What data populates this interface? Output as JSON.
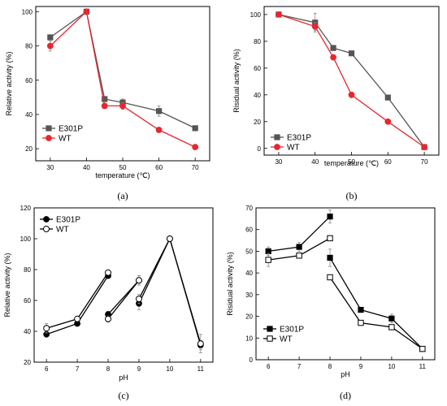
{
  "chart_data": [
    {
      "type": "line",
      "panel_label": "(a)",
      "xlabel": "temperature (℃)",
      "ylabel": "Relative activity (%)",
      "x": [
        30,
        40,
        45,
        50,
        60,
        70
      ],
      "x_ticks": [
        30,
        40,
        50,
        60,
        70
      ],
      "y_ticks": [
        20,
        40,
        60,
        80,
        100
      ],
      "xlim": [
        26,
        74
      ],
      "ylim": [
        13,
        103
      ],
      "legend_position": "bottom-left",
      "grid": false,
      "series": [
        {
          "name": "E301P",
          "marker": "filled-square",
          "color": "#555555",
          "values": [
            85,
            100,
            49,
            47,
            42,
            32
          ],
          "errors": [
            1.5,
            0,
            1.5,
            2,
            3,
            1
          ]
        },
        {
          "name": "WT",
          "marker": "filled-circle",
          "color": "#e8262f",
          "values": [
            80,
            100,
            45,
            45,
            31,
            21
          ],
          "errors": [
            3,
            0,
            1.5,
            2,
            1.5,
            1
          ]
        }
      ]
    },
    {
      "type": "line",
      "panel_label": "(b)",
      "xlabel": "temperature (℃)",
      "ylabel": "Risidual activity (%)",
      "x": [
        30,
        40,
        45,
        50,
        60,
        70
      ],
      "x_ticks": [
        30,
        40,
        50,
        60,
        70
      ],
      "y_ticks": [
        0,
        20,
        40,
        60,
        80,
        100
      ],
      "xlim": [
        26,
        74
      ],
      "ylim": [
        -5,
        106
      ],
      "legend_position": "bottom-left",
      "grid": false,
      "series": [
        {
          "name": "E301P",
          "marker": "filled-square",
          "color": "#555555",
          "values": [
            100,
            94,
            75,
            71,
            38,
            1
          ],
          "errors": [
            0,
            7,
            2,
            1,
            1,
            1
          ]
        },
        {
          "name": "WT",
          "marker": "filled-circle",
          "color": "#e8262f",
          "values": [
            100,
            91,
            68,
            40,
            20,
            1
          ],
          "errors": [
            0,
            3,
            1,
            1,
            1,
            1
          ]
        }
      ]
    },
    {
      "type": "line",
      "panel_label": "(c)",
      "xlabel": "pH",
      "ylabel": "Relative activity (%)",
      "x_ticks": [
        6,
        7,
        8,
        9,
        10,
        11
      ],
      "y_ticks": [
        20,
        40,
        60,
        80,
        100,
        120
      ],
      "xlim": [
        5.6,
        11.4
      ],
      "ylim": [
        20,
        120
      ],
      "legend_position": "top-left",
      "grid": false,
      "series": [
        {
          "name": "E301P",
          "marker": "filled-circle",
          "color": "#000000",
          "segments": [
            {
              "x": [
                6,
                7,
                8
              ],
              "values": [
                38,
                45,
                76
              ]
            },
            {
              "x": [
                8,
                9
              ],
              "values": [
                51,
                73
              ]
            },
            {
              "x": [
                9,
                10,
                11
              ],
              "values": [
                58,
                100,
                31
              ]
            }
          ],
          "errors": [
            [
              0,
              1,
              1
            ],
            [
              2,
              3
            ],
            [
              4,
              0,
              3
            ]
          ]
        },
        {
          "name": "WT",
          "marker": "open-circle",
          "color": "#000000",
          "segments": [
            {
              "x": [
                6,
                7,
                8
              ],
              "values": [
                42,
                48,
                78
              ]
            },
            {
              "x": [
                8,
                9
              ],
              "values": [
                48,
                73
              ]
            },
            {
              "x": [
                9,
                10,
                11
              ],
              "values": [
                61,
                100,
                32
              ]
            }
          ],
          "errors": [
            [
              3,
              1,
              1
            ],
            [
              2,
              3
            ],
            [
              3,
              0,
              6
            ]
          ]
        }
      ]
    },
    {
      "type": "line",
      "panel_label": "(d)",
      "xlabel": "pH",
      "ylabel": "Risidual activity (%)",
      "x_ticks": [
        6,
        7,
        8,
        9,
        10,
        11
      ],
      "y_ticks": [
        0,
        10,
        20,
        30,
        40,
        50,
        60,
        70
      ],
      "xlim": [
        5.6,
        11.4
      ],
      "ylim": [
        0,
        70
      ],
      "legend_position": "bottom-left",
      "grid": false,
      "series": [
        {
          "name": "E301P",
          "marker": "filled-square",
          "color": "#000000",
          "segments": [
            {
              "x": [
                6,
                7,
                8
              ],
              "values": [
                50,
                52,
                66
              ]
            },
            {
              "x": [
                8,
                9,
                10,
                11
              ],
              "values": [
                47,
                23,
                19,
                5
              ]
            }
          ],
          "errors": [
            [
              2,
              2,
              3
            ],
            [
              4,
              1,
              2,
              1
            ]
          ]
        },
        {
          "name": "WT",
          "marker": "open-square",
          "color": "#000000",
          "segments": [
            {
              "x": [
                6,
                7,
                8
              ],
              "values": [
                46,
                48,
                56
              ]
            },
            {
              "x": [
                8,
                9,
                10,
                11
              ],
              "values": [
                38,
                17,
                15,
                5
              ]
            }
          ],
          "errors": [
            [
              3,
              1,
              1
            ],
            [
              1,
              1,
              1,
              1
            ]
          ]
        }
      ]
    }
  ]
}
